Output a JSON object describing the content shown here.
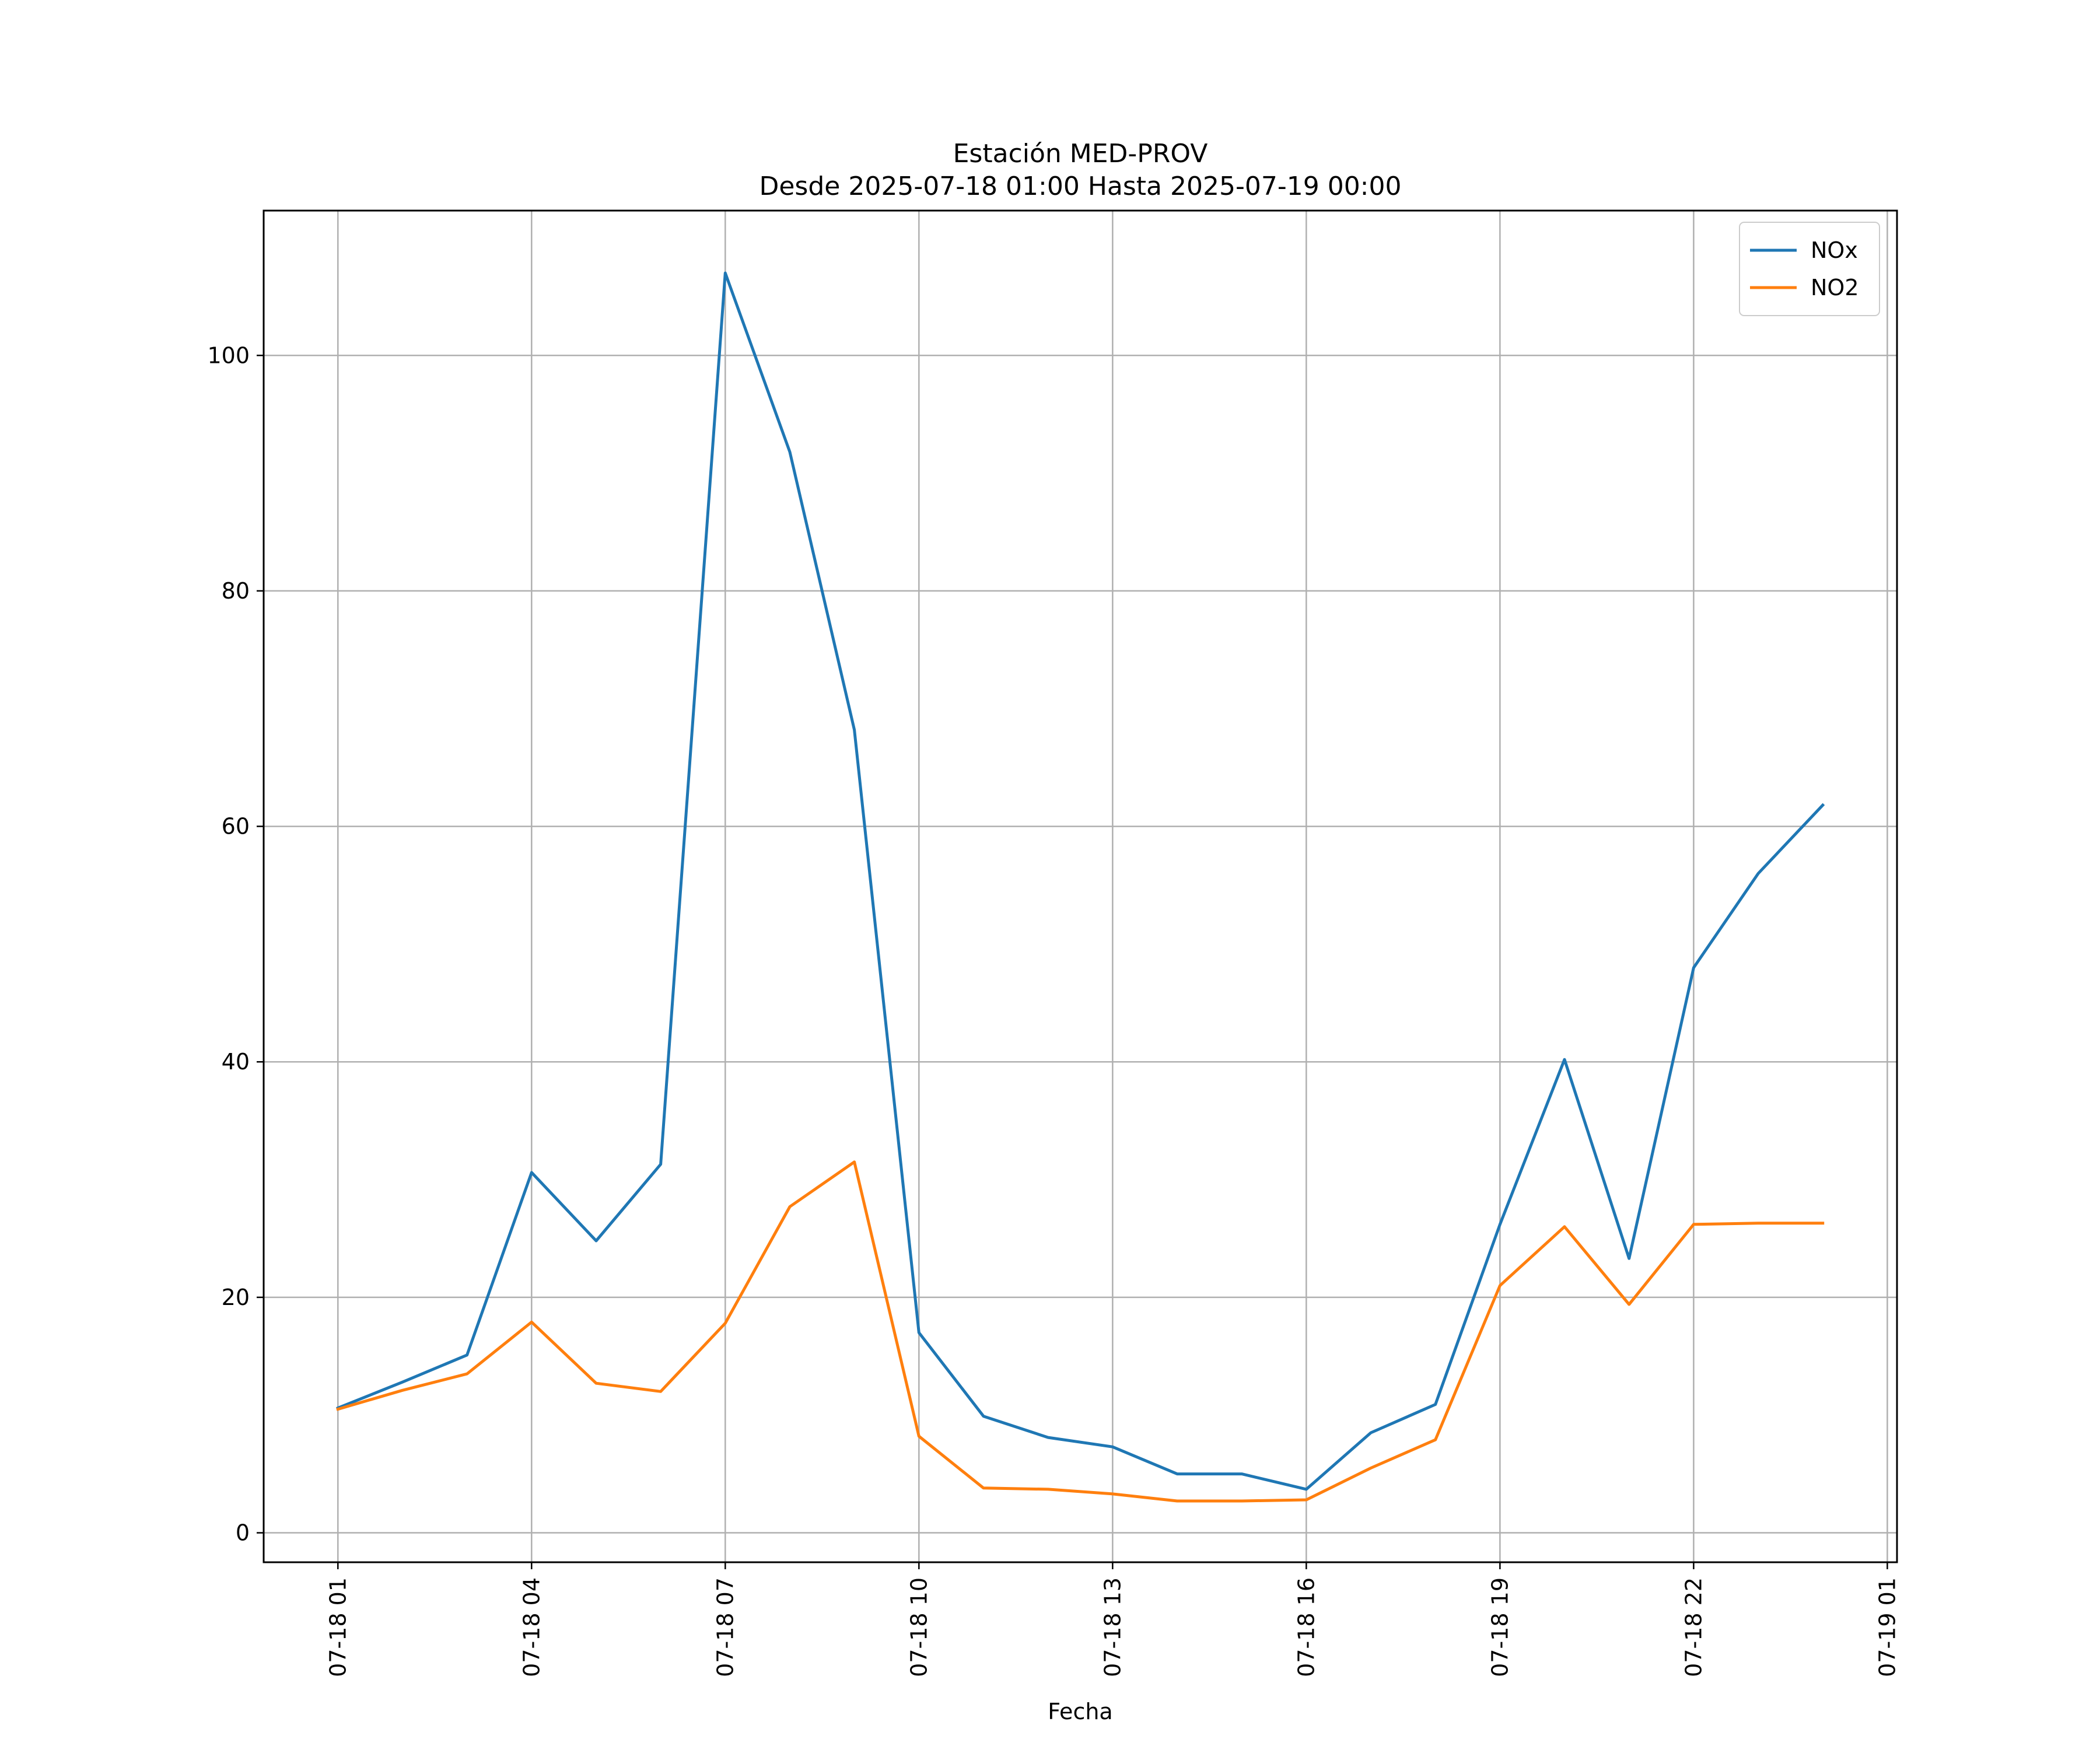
{
  "chart_data": {
    "type": "line",
    "title": "Estación MED-PROV",
    "subtitle": "Desde 2025-07-18 01:00 Hasta 2025-07-19 00:00",
    "xlabel": "Fecha",
    "ylabel": "",
    "x": [
      "2025-07-18 01:00",
      "2025-07-18 02:00",
      "2025-07-18 03:00",
      "2025-07-18 04:00",
      "2025-07-18 05:00",
      "2025-07-18 06:00",
      "2025-07-18 07:00",
      "2025-07-18 08:00",
      "2025-07-18 09:00",
      "2025-07-18 10:00",
      "2025-07-18 11:00",
      "2025-07-18 12:00",
      "2025-07-18 13:00",
      "2025-07-18 14:00",
      "2025-07-18 15:00",
      "2025-07-18 16:00",
      "2025-07-18 17:00",
      "2025-07-18 18:00",
      "2025-07-18 19:00",
      "2025-07-18 20:00",
      "2025-07-18 21:00",
      "2025-07-18 22:00",
      "2025-07-18 23:00",
      "2025-07-19 00:00"
    ],
    "series": [
      {
        "name": "NOx",
        "color": "#1f77b4",
        "values": [
          10.6,
          12.8,
          15.1,
          30.6,
          24.8,
          31.3,
          107.0,
          91.8,
          68.2,
          17.0,
          9.9,
          8.1,
          7.3,
          5.0,
          5.0,
          3.7,
          8.5,
          10.9,
          26.2,
          40.2,
          23.3,
          48.0,
          56.0,
          61.8
        ]
      },
      {
        "name": "NO2",
        "color": "#ff7f0e",
        "values": [
          10.5,
          12.1,
          13.5,
          17.9,
          12.7,
          12.0,
          17.8,
          27.7,
          31.5,
          8.2,
          3.8,
          3.7,
          3.3,
          2.7,
          2.7,
          2.8,
          5.5,
          7.9,
          21.0,
          26.0,
          19.4,
          26.2,
          26.3,
          26.3
        ]
      }
    ],
    "x_ticks": [
      "07-18 01",
      "07-18 04",
      "07-18 07",
      "07-18 10",
      "07-18 13",
      "07-18 16",
      "07-18 19",
      "07-18 22",
      "07-19 01"
    ],
    "x_tick_values": [
      "2025-07-18 01:00",
      "2025-07-18 04:00",
      "2025-07-18 07:00",
      "2025-07-18 10:00",
      "2025-07-18 13:00",
      "2025-07-18 16:00",
      "2025-07-18 19:00",
      "2025-07-18 22:00",
      "2025-07-19 01:00"
    ],
    "y_ticks": [
      "0",
      "20",
      "40",
      "60",
      "80",
      "100"
    ],
    "xlim": [
      "2025-07-17 23:51",
      "2025-07-19 01:09"
    ],
    "ylim": [
      -2.5,
      112.3
    ],
    "grid": true,
    "legend_position": "top-right"
  }
}
